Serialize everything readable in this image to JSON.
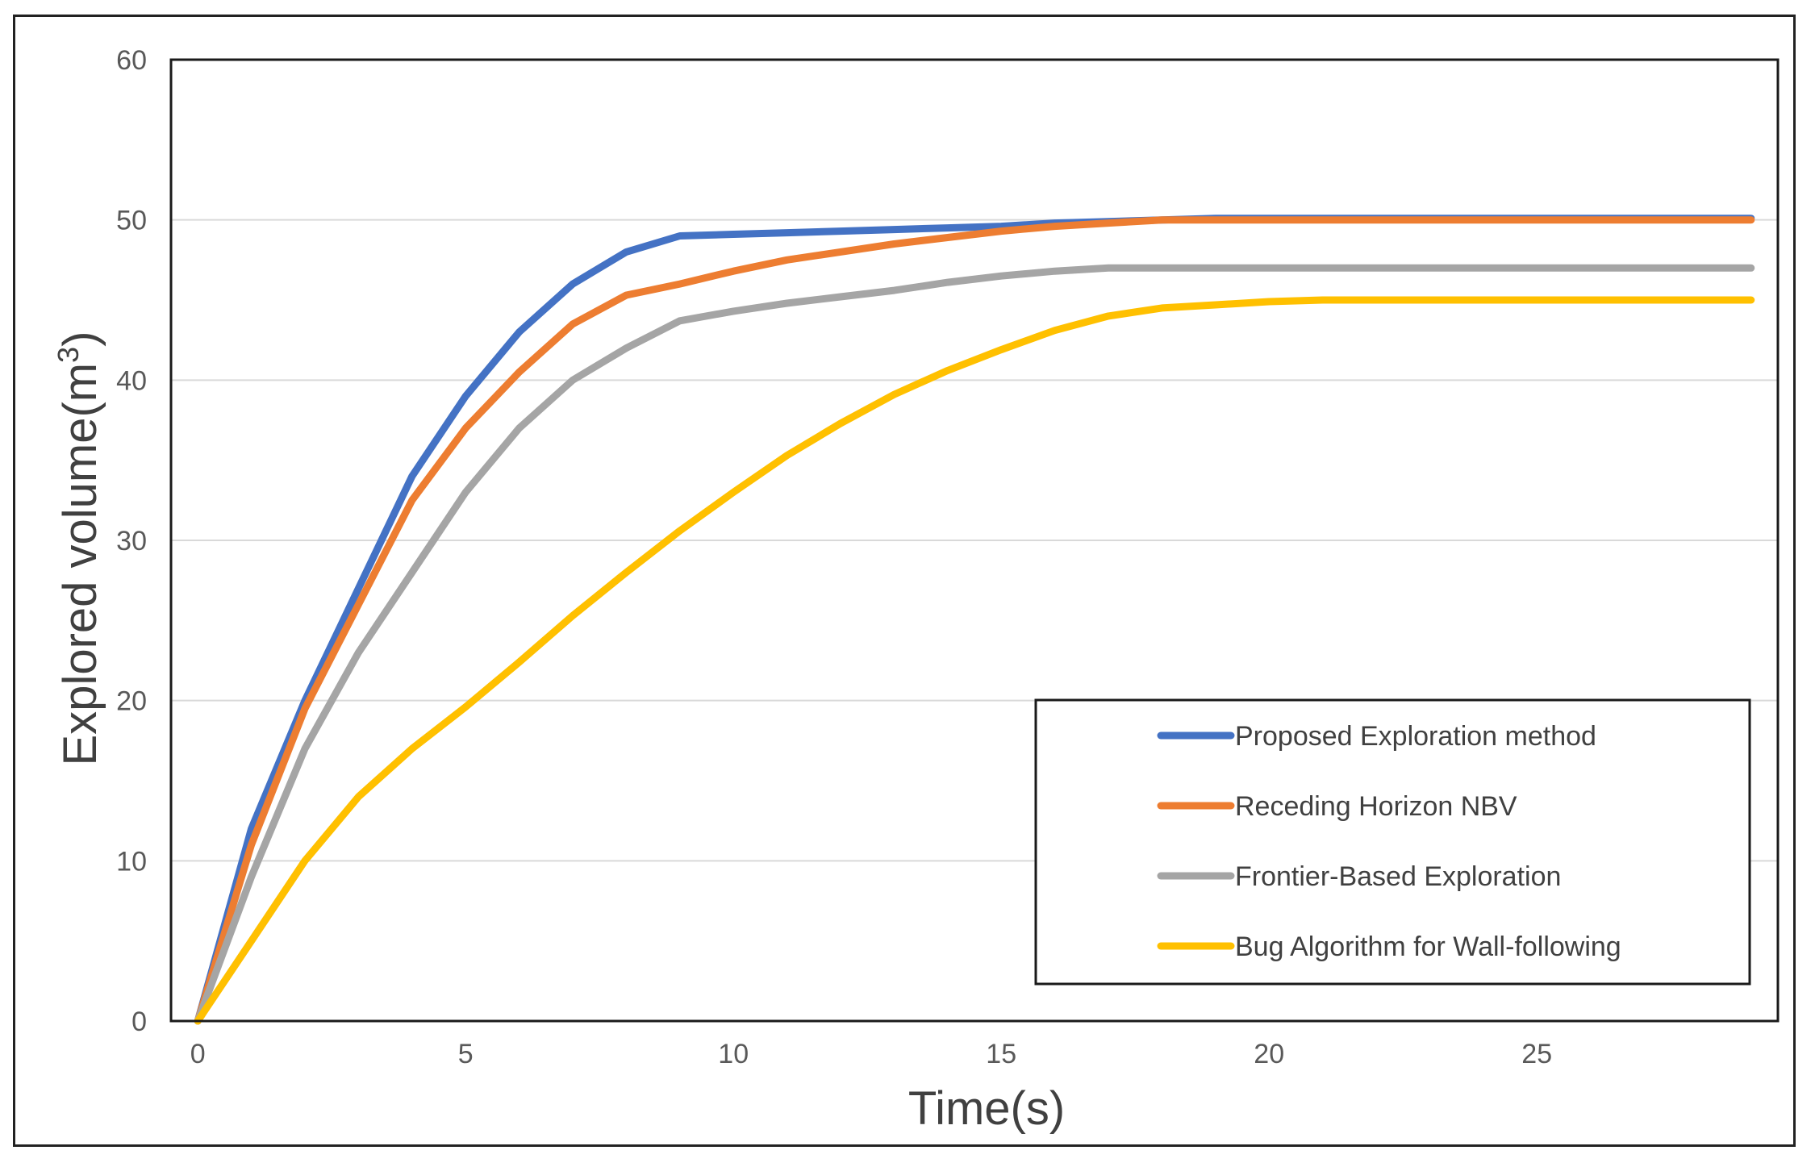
{
  "chart_data": {
    "type": "line",
    "title": "",
    "xlabel": "Time(s)",
    "ylabel_base": "Explored volume(m",
    "ylabel_sup": "3",
    "ylabel_end": ")",
    "xlim": [
      -0.5,
      29.5
    ],
    "ylim": [
      0,
      60
    ],
    "xticks": [
      0,
      5,
      10,
      15,
      20,
      25
    ],
    "yticks": [
      0,
      10,
      20,
      30,
      40,
      50,
      60
    ],
    "grid": "horizontal",
    "legend_position": "bottom-right",
    "x": [
      0,
      1,
      2,
      3,
      4,
      5,
      6,
      7,
      8,
      9,
      10,
      11,
      12,
      13,
      14,
      15,
      16,
      17,
      18,
      19,
      20,
      21,
      22,
      23,
      24,
      25,
      26,
      27,
      28,
      29
    ],
    "series": [
      {
        "name": "Proposed Exploration method",
        "color": "#4472C4",
        "values": [
          0,
          12,
          20,
          27,
          34,
          39,
          43,
          46,
          48,
          49,
          49.1,
          49.2,
          49.3,
          49.4,
          49.5,
          49.6,
          49.8,
          49.9,
          50,
          50.1,
          50.1,
          50.1,
          50.1,
          50.1,
          50.1,
          50.1,
          50.1,
          50.1,
          50.1,
          50.1
        ]
      },
      {
        "name": "Receding Horizon NBV",
        "color": "#ED7D31",
        "values": [
          0,
          11,
          19.5,
          26,
          32.5,
          37,
          40.5,
          43.5,
          45.3,
          46,
          46.8,
          47.5,
          48,
          48.5,
          48.9,
          49.3,
          49.6,
          49.8,
          50,
          50,
          50,
          50,
          50,
          50,
          50,
          50,
          50,
          50,
          50,
          50
        ]
      },
      {
        "name": "Frontier-Based Exploration",
        "color": "#A5A5A5",
        "values": [
          0,
          9,
          17,
          23,
          28,
          33,
          37,
          40,
          42,
          43.7,
          44.3,
          44.8,
          45.2,
          45.6,
          46.1,
          46.5,
          46.8,
          47,
          47,
          47,
          47,
          47,
          47,
          47,
          47,
          47,
          47,
          47,
          47,
          47
        ]
      },
      {
        "name": "Bug Algorithm for Wall-following",
        "color": "#FFC000",
        "values": [
          0,
          5,
          10,
          14,
          17,
          19.6,
          22.4,
          25.3,
          28,
          30.6,
          33,
          35.3,
          37.3,
          39.1,
          40.6,
          41.9,
          43.1,
          44,
          44.5,
          44.7,
          44.9,
          45,
          45,
          45,
          45,
          45,
          45,
          45,
          45,
          45
        ]
      }
    ]
  }
}
